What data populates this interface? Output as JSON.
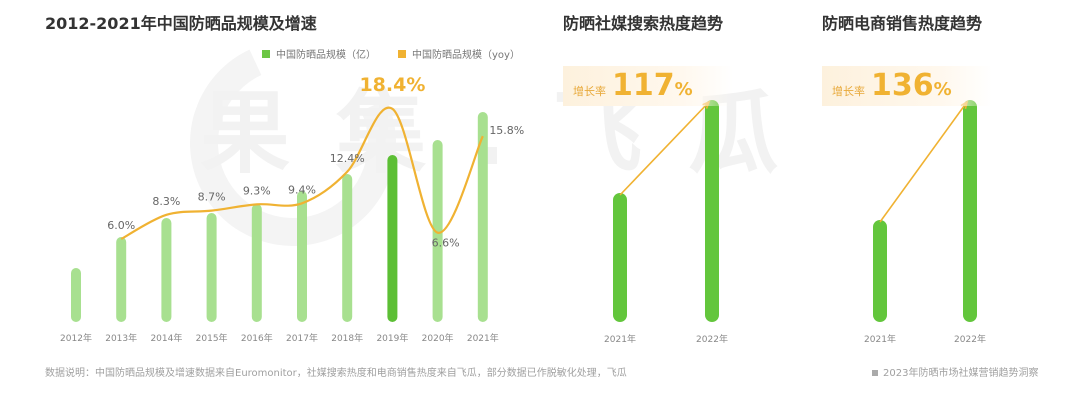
{
  "charts": {
    "main": {
      "title": "2012-2021年中国防晒品规模及增速",
      "legend": [
        {
          "label": "中国防晒品规模（亿）",
          "color": "#6cc644"
        },
        {
          "label": "中国防晒品规模（yoy）",
          "color": "#f0b232"
        }
      ]
    },
    "social": {
      "title": "防晒社媒搜索热度趋势",
      "growth_label": "增长率",
      "growth_value": "117",
      "growth_unit": "%"
    },
    "ecommerce": {
      "title": "防晒电商销售热度趋势",
      "growth_label": "增长率",
      "growth_value": "136",
      "growth_unit": "%"
    }
  },
  "footer": {
    "note": "数据说明：中国防晒品规模及增速数据来自Euromonitor，社媒搜索热度和电商销售热度来自飞瓜，部分数据已作脱敏化处理，飞瓜",
    "source": "2023年防晒市场社媒营销趋势洞察"
  },
  "watermark": "果集.飞瓜",
  "chart_data": [
    {
      "type": "bar",
      "title": "2012-2021年中国防晒品规模及增速",
      "categories": [
        "2012年",
        "2013年",
        "2014年",
        "2015年",
        "2016年",
        "2017年",
        "2018年",
        "2019年",
        "2020年",
        "2021年"
      ],
      "series": [
        {
          "name": "中国防晒品规模（亿）",
          "type": "bar",
          "values": [
            54,
            85,
            104,
            109,
            118,
            131,
            148,
            167,
            182,
            210
          ],
          "note": "relative bar heights, no axis shown"
        },
        {
          "name": "中国防晒品规模（yoy）",
          "type": "line",
          "values": [
            null,
            6.0,
            8.3,
            8.7,
            9.3,
            9.4,
            12.4,
            18.4,
            6.6,
            15.8
          ],
          "labels": [
            "",
            "6.0%",
            "8.3%",
            "8.7%",
            "9.3%",
            "9.4%",
            "12.4%",
            "18.4%",
            "6.6%",
            "15.8%"
          ]
        }
      ],
      "highlight": "2019年",
      "xlabel": "",
      "ylabel": ""
    },
    {
      "type": "bar",
      "title": "防晒社媒搜索热度趋势",
      "categories": [
        "2021年",
        "2022年"
      ],
      "values": [
        129,
        222
      ],
      "annotation": "增长率 117%"
    },
    {
      "type": "bar",
      "title": "防晒电商销售热度趋势",
      "categories": [
        "2021年",
        "2022年"
      ],
      "values": [
        102,
        222
      ],
      "annotation": "增长率 136%"
    }
  ]
}
